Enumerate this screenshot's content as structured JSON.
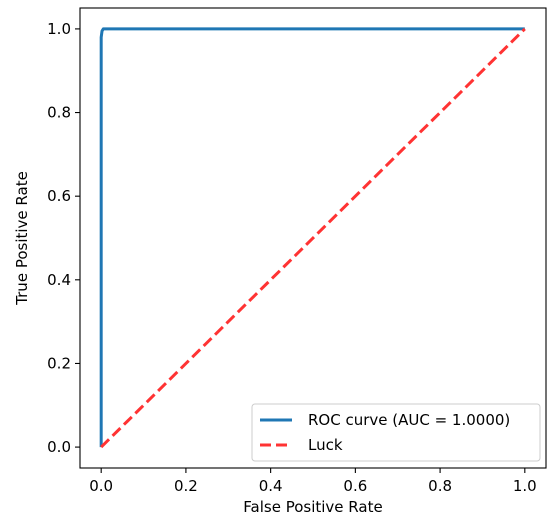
{
  "chart_data": {
    "type": "line",
    "title": "",
    "xlabel": "False Positive Rate",
    "ylabel": "True Positive Rate",
    "xlim": [
      -0.05,
      1.05
    ],
    "ylim": [
      -0.05,
      1.05
    ],
    "xticks": [
      0.0,
      0.2,
      0.4,
      0.6,
      0.8,
      1.0
    ],
    "yticks": [
      0.0,
      0.2,
      0.4,
      0.6,
      0.8,
      1.0
    ],
    "xtick_labels": [
      "0.0",
      "0.2",
      "0.4",
      "0.6",
      "0.8",
      "1.0"
    ],
    "ytick_labels": [
      "0.0",
      "0.2",
      "0.4",
      "0.6",
      "0.8",
      "1.0"
    ],
    "grid": false,
    "legend_position": "lower-right",
    "series": [
      {
        "name": "ROC curve (AUC = 1.0000)",
        "color": "#1f77b4",
        "style": "solid",
        "x": [
          0.0,
          0.0,
          0.002,
          0.005,
          1.0
        ],
        "y": [
          0.0,
          0.98,
          0.995,
          1.0,
          1.0
        ]
      },
      {
        "name": "Luck",
        "color": "#ff3333",
        "style": "dashed",
        "x": [
          0.0,
          1.0
        ],
        "y": [
          0.0,
          1.0
        ]
      }
    ]
  }
}
